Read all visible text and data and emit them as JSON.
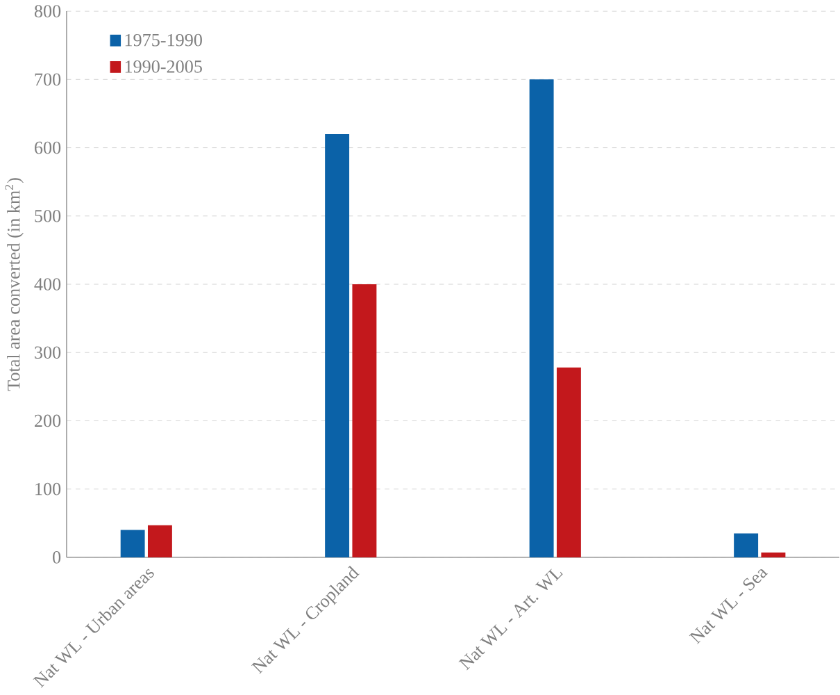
{
  "chart_data": {
    "type": "bar",
    "ylabel": "Total area converted (in km$^{2}$)",
    "categories": [
      "Nat WL - Urban areas",
      "Nat WL - Cropland",
      "Nat WL - Art. WL",
      "Nat WL - Sea"
    ],
    "series": [
      {
        "name": "1975-1990",
        "color": "#0b62a8",
        "values": [
          40,
          620,
          700,
          35
        ]
      },
      {
        "name": "1990-2005",
        "color": "#c3181c",
        "values": [
          47,
          400,
          278,
          7
        ]
      }
    ],
    "ylim": [
      0,
      800
    ],
    "yticks": [
      0,
      100,
      200,
      300,
      400,
      500,
      600,
      700,
      800
    ],
    "grid": "y",
    "legend": "top left"
  }
}
